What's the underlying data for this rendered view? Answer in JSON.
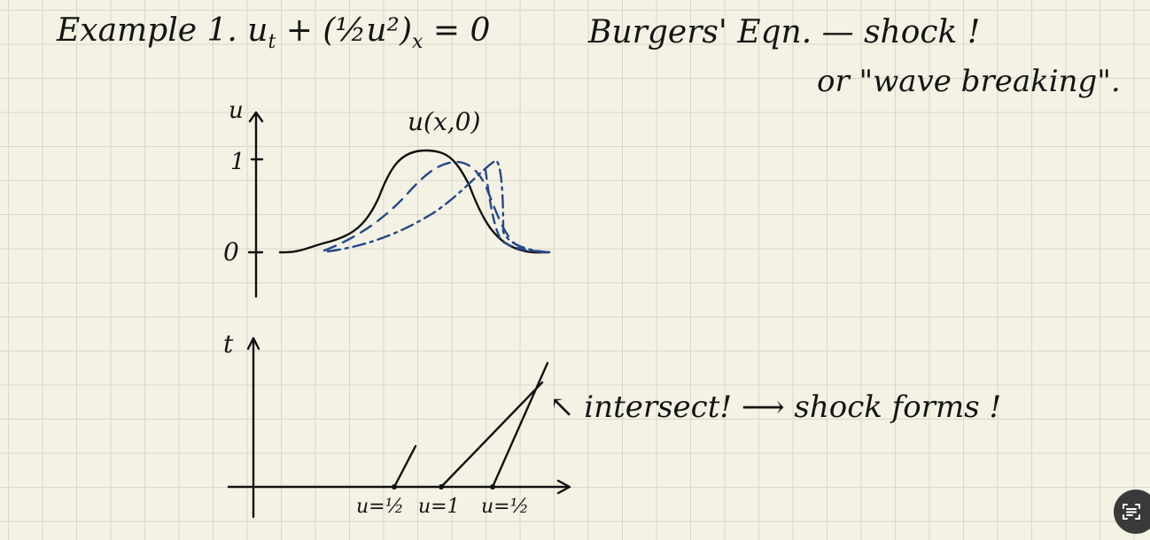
{
  "header": {
    "line1_left": "Example 1. u",
    "line1_sub_t": "t",
    "line1_plus": "+  (",
    "line1_half": "½",
    "line1_u2": "u²)",
    "line1_sub_x": "x",
    "line1_eq": "= 0",
    "line1_right": "Burgers'  Eqn. — shock !",
    "line2": "or \"wave breaking\"."
  },
  "top_plot": {
    "y_axis_label": "u",
    "tick_1": "1",
    "tick_0": "0",
    "curve_label": "u(x,0)"
  },
  "bottom_plot": {
    "y_axis_label": "t",
    "annotation": "↖ intersect! ⟶ shock forms !",
    "x_labels": [
      "u=½",
      "u=1",
      "u=½"
    ]
  },
  "ui": {
    "scan_button_icon": "scan-text-icon"
  },
  "colors": {
    "ink": "#111111",
    "blue_ink": "#25478a",
    "paper": "#f3f2e4",
    "grid": "#d7d8c9"
  }
}
